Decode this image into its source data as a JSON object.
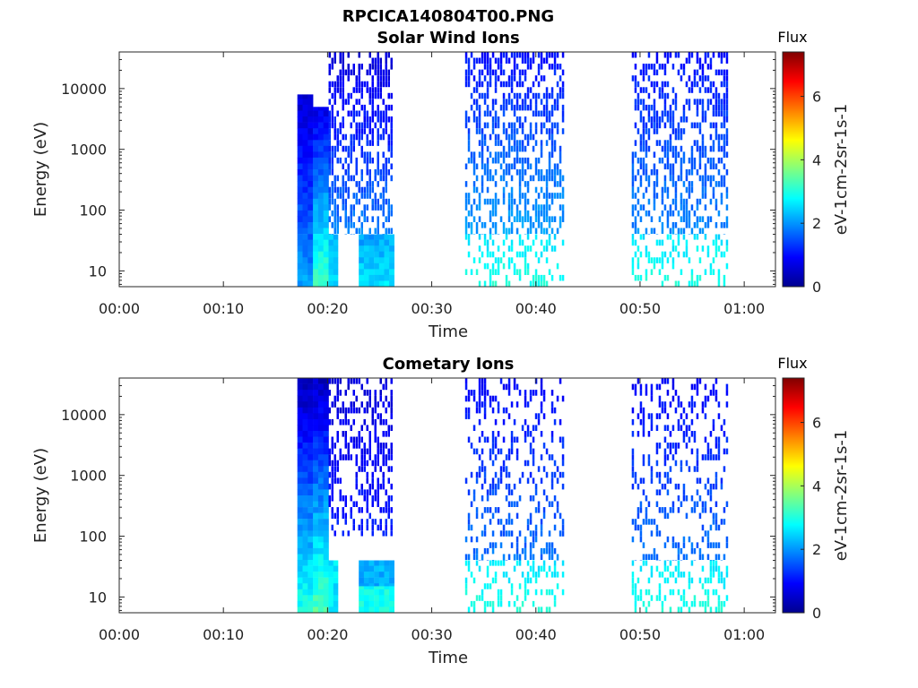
{
  "figure_title": "RPCICA140804T00.PNG",
  "colormap": [
    "#00008f",
    "#0000ff",
    "#0080ff",
    "#00ffff",
    "#80ff80",
    "#ffff00",
    "#ff8000",
    "#ff0000",
    "#800000"
  ],
  "chart_data": [
    {
      "type": "heatmap",
      "title": "Solar Wind Ions",
      "xlabel": "Time",
      "ylabel": "Energy (eV)",
      "x_tick_labels": [
        "00:00",
        "00:10",
        "00:20",
        "00:30",
        "00:40",
        "00:50",
        "01:00"
      ],
      "x_tick_minutes": [
        0,
        10,
        20,
        30,
        40,
        50,
        60
      ],
      "xlim_minutes": [
        0,
        63
      ],
      "y_scale": "log",
      "y_tick_labels": [
        "10",
        "100",
        "1000",
        "10000"
      ],
      "y_tick_values": [
        10,
        100,
        1000,
        10000
      ],
      "ylim": [
        5.5,
        40000
      ],
      "colorbar": {
        "title": "Flux",
        "label": "eV-1cm-2sr-1s-1",
        "tick_labels": [
          "0",
          "2",
          "4",
          "6"
        ],
        "tick_values": [
          0,
          2,
          4,
          6
        ],
        "range": [
          0,
          7.4
        ]
      },
      "flux_blocks": [
        {
          "t0": 17.1,
          "t1": 18.6,
          "e0": 5.5,
          "e1": 8000,
          "v0": 2.1,
          "v1": 0.5
        },
        {
          "t0": 18.6,
          "t1": 20.1,
          "e0": 5.5,
          "e1": 5000,
          "v0": 3.3,
          "v1": 0.7
        },
        {
          "t0": 20.1,
          "t1": 21.0,
          "e0": 5.5,
          "e1": 40,
          "v0": 2.4,
          "v1": 2.4
        },
        {
          "t0": 23.0,
          "t1": 26.4,
          "e0": 5.5,
          "e1": 40,
          "v0": 2.6,
          "v1": 2.1
        }
      ],
      "sparse_bursts": [
        {
          "t0": 20.1,
          "t1": 26.4,
          "e0": 40,
          "e1": 40000,
          "density": 0.55,
          "v0": 2.2,
          "v1": 0.6
        },
        {
          "t0": 33.2,
          "t1": 42.8,
          "e0": 40,
          "e1": 40000,
          "density": 0.5,
          "v0": 2.4,
          "v1": 1.0
        },
        {
          "t0": 49.2,
          "t1": 58.7,
          "e0": 40,
          "e1": 40000,
          "density": 0.45,
          "v0": 2.2,
          "v1": 1.0
        },
        {
          "t0": 33.2,
          "t1": 42.8,
          "e0": 5.5,
          "e1": 40,
          "density": 0.3,
          "v0": 3.0,
          "v1": 2.6
        },
        {
          "t0": 49.2,
          "t1": 58.7,
          "e0": 5.5,
          "e1": 40,
          "density": 0.3,
          "v0": 3.0,
          "v1": 2.6
        }
      ]
    },
    {
      "type": "heatmap",
      "title": "Cometary Ions",
      "xlabel": "Time",
      "ylabel": "Energy (eV)",
      "x_tick_labels": [
        "00:00",
        "00:10",
        "00:20",
        "00:30",
        "00:40",
        "00:50",
        "01:00"
      ],
      "x_tick_minutes": [
        0,
        10,
        20,
        30,
        40,
        50,
        60
      ],
      "xlim_minutes": [
        0,
        63
      ],
      "y_scale": "log",
      "y_tick_labels": [
        "10",
        "100",
        "1000",
        "10000"
      ],
      "y_tick_values": [
        10,
        100,
        1000,
        10000
      ],
      "ylim": [
        5.5,
        40000
      ],
      "colorbar": {
        "title": "Flux",
        "label": "eV-1cm-2sr-1s-1",
        "tick_labels": [
          "0",
          "2",
          "4",
          "6"
        ],
        "tick_values": [
          0,
          2,
          4,
          6
        ],
        "range": [
          0,
          7.4
        ]
      },
      "flux_blocks": [
        {
          "t0": 17.1,
          "t1": 18.6,
          "e0": 5.5,
          "e1": 40000,
          "v0": 3.0,
          "v1": 0.3
        },
        {
          "t0": 18.6,
          "t1": 20.1,
          "e0": 5.5,
          "e1": 40000,
          "v0": 3.4,
          "v1": 0.4
        },
        {
          "t0": 20.1,
          "t1": 21.0,
          "e0": 5.5,
          "e1": 40,
          "v0": 2.6,
          "v1": 2.6
        },
        {
          "t0": 23.0,
          "t1": 26.4,
          "e0": 15,
          "e1": 40,
          "v0": 2.2,
          "v1": 2.2
        },
        {
          "t0": 23.0,
          "t1": 26.4,
          "e0": 5.5,
          "e1": 15,
          "v0": 2.9,
          "v1": 2.9
        }
      ],
      "sparse_bursts": [
        {
          "t0": 20.1,
          "t1": 26.4,
          "e0": 100,
          "e1": 40000,
          "density": 0.4,
          "v0": 1.4,
          "v1": 0.6
        },
        {
          "t0": 33.2,
          "t1": 42.8,
          "e0": 40,
          "e1": 40000,
          "density": 0.3,
          "v0": 2.0,
          "v1": 0.9
        },
        {
          "t0": 49.2,
          "t1": 58.7,
          "e0": 40,
          "e1": 40000,
          "density": 0.28,
          "v0": 2.0,
          "v1": 0.9
        },
        {
          "t0": 33.2,
          "t1": 42.8,
          "e0": 5.5,
          "e1": 40,
          "density": 0.3,
          "v0": 3.0,
          "v1": 2.6
        },
        {
          "t0": 49.2,
          "t1": 58.7,
          "e0": 5.5,
          "e1": 40,
          "density": 0.3,
          "v0": 3.0,
          "v1": 2.6
        }
      ]
    }
  ]
}
